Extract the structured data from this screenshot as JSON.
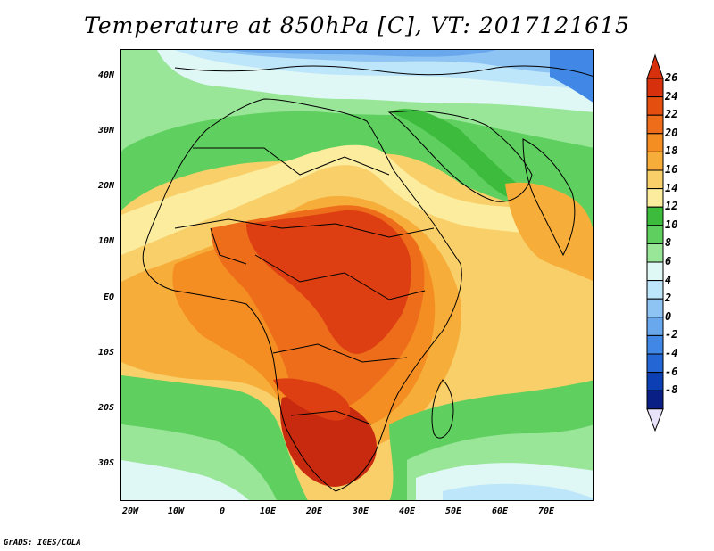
{
  "title": "Temperature at 850hPa [C], VT: 2017121615",
  "footer": "GrADS: IGES/COLA",
  "map": {
    "lat_labels": [
      "40N",
      "30N",
      "20N",
      "10N",
      "EQ",
      "10S",
      "20S",
      "30S"
    ],
    "lon_labels": [
      "20W",
      "10W",
      "0",
      "10E",
      "20E",
      "30E",
      "40E",
      "50E",
      "60E",
      "70E"
    ]
  },
  "colorbar": {
    "labels": [
      "26",
      "24",
      "22",
      "20",
      "18",
      "16",
      "14",
      "12",
      "10",
      "8",
      "6",
      "4",
      "2",
      "0",
      "-2",
      "-4",
      "-6",
      "-8"
    ],
    "colors": [
      "#d7300d",
      "#e44f10",
      "#ee6d1b",
      "#f48d22",
      "#f6ad3a",
      "#f9cf6a",
      "#fbec9e",
      "#3cbb3c",
      "#5fd05f",
      "#99e699",
      "#dff7f5",
      "#bde6fb",
      "#8ec4f3",
      "#6aa8ee",
      "#4187e5",
      "#2366d4",
      "#0c3fb3",
      "#0a1f86"
    ],
    "top_arrow_color": "#d7300d",
    "bottom_arrow_color": "#e8e2fb"
  },
  "colors": {
    "hot_core": "#c82a0f",
    "very_hot": "#dd3f12",
    "hot": "#ee6d1b",
    "warm": "#f48d22",
    "warmish": "#f6ad3a",
    "mild": "#f9cf6a",
    "pale_yellow": "#fbec9e",
    "green_dark": "#3cbb3c",
    "green": "#5fd05f",
    "green_light": "#99e699",
    "cyan_pale": "#dff7f5",
    "blue_pale": "#bde6fb",
    "blue_light": "#8ec4f3",
    "blue": "#6aa8ee",
    "blue_dark": "#4187e5"
  }
}
